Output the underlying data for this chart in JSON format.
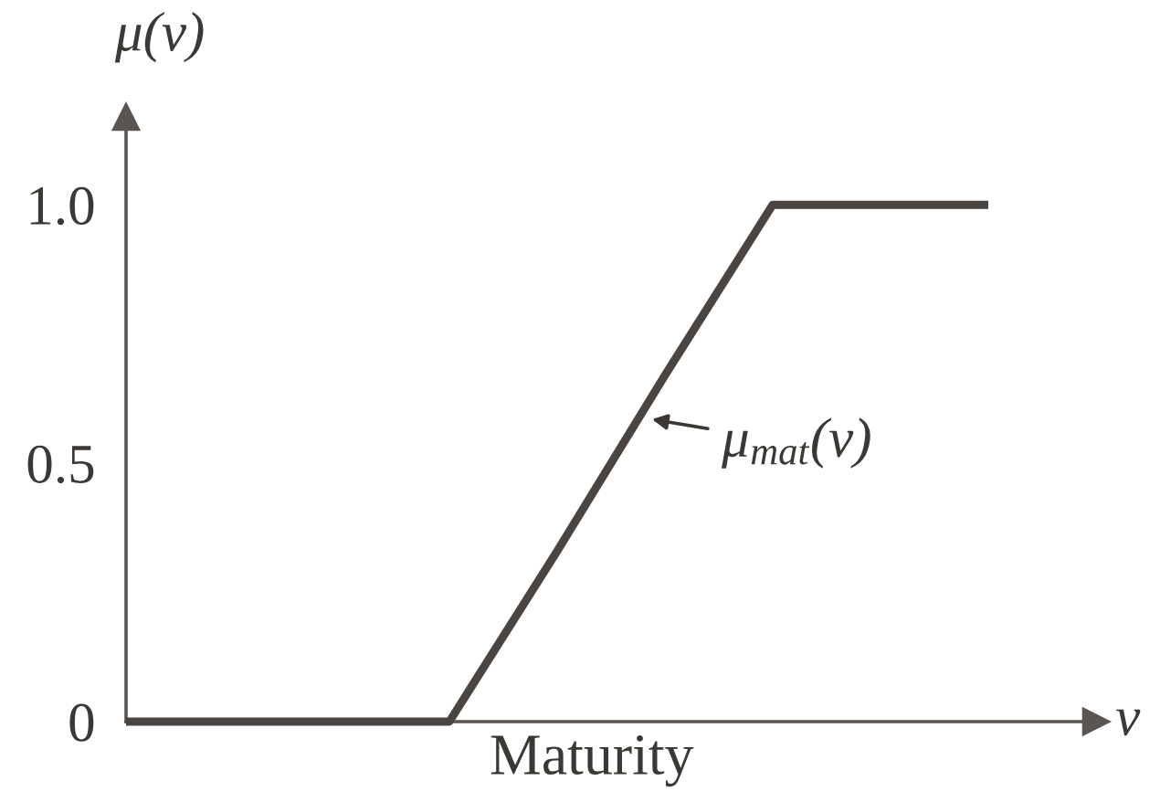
{
  "chart_data": {
    "type": "line",
    "xlabel": "Maturity",
    "ylabel": "μ(v)",
    "annotations": [
      "μ$_{mat}$(v)",
      "v"
    ],
    "categories": [
      null,
      null,
      null,
      null,
      null,
      null,
      null,
      null,
      null
    ],
    "series": [
      {
        "color": "#4a4540",
        "values": [
          0,
          0,
          0,
          0,
          0.33,
          0.67,
          1,
          1,
          1
        ]
      }
    ],
    "ylim": [
      0,
      1.17
    ],
    "yticks": [
      0,
      0.5,
      {
        "value": 1,
        "label": "1.0"
      }
    ],
    "tick_labels": "y"
  }
}
